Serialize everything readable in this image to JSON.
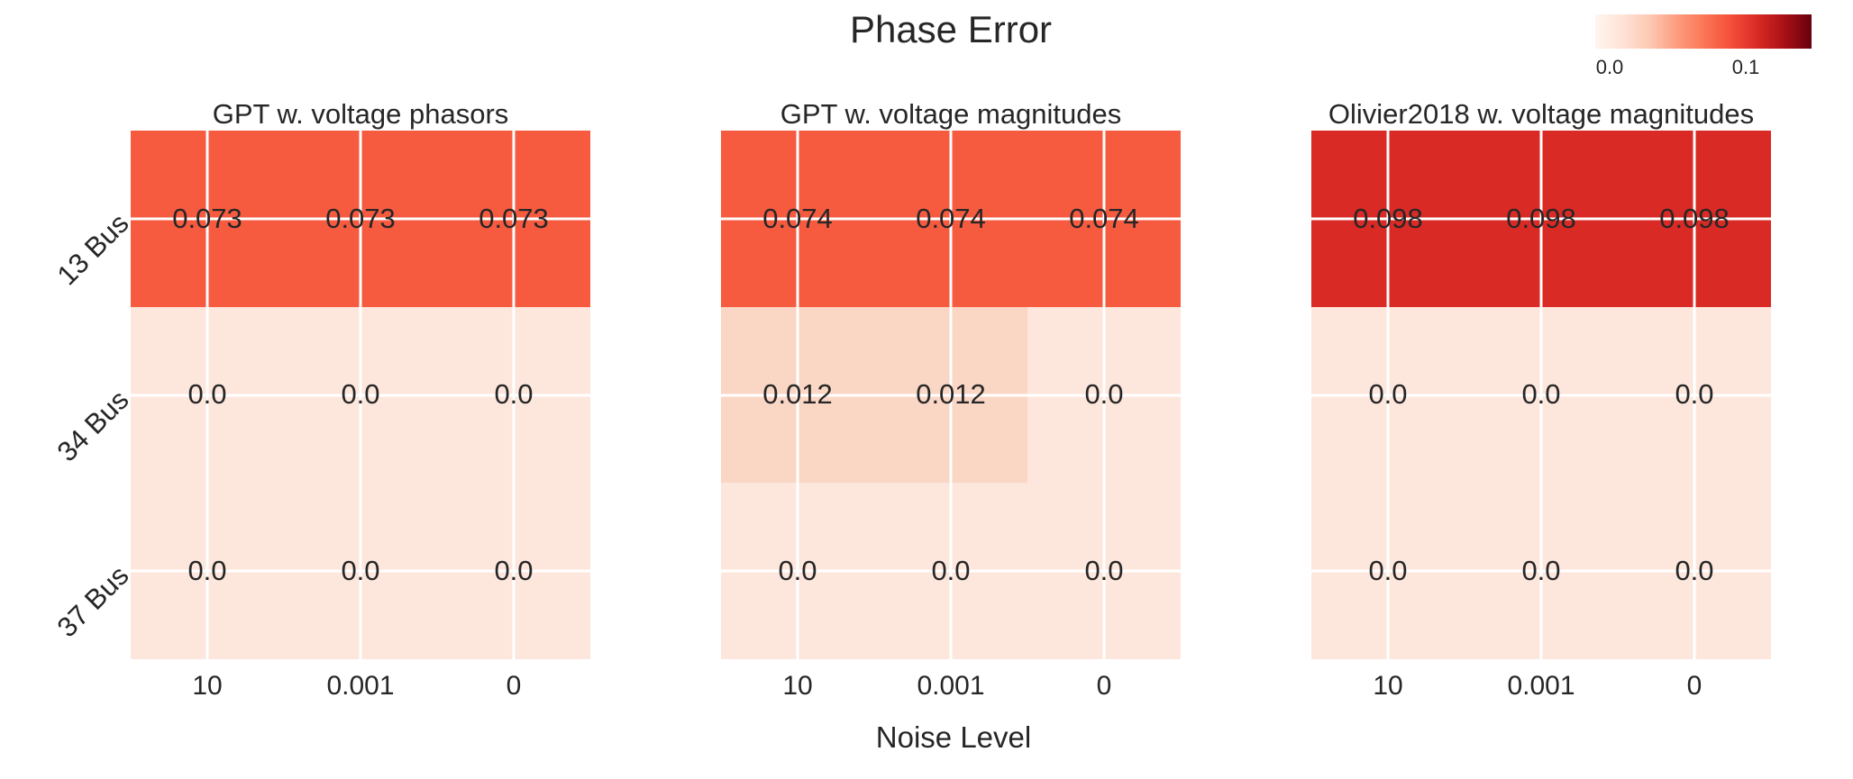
{
  "figure": {
    "title": "Phase Error",
    "x_axis_label": "Noise Level"
  },
  "colorbar": {
    "tick_labels": [
      "0.0",
      "0.1"
    ],
    "cmap_name": "Reds",
    "gradient_stops": [
      "#fff5f0",
      "#fee3d7",
      "#fdc9b3",
      "#fc9e80",
      "#fb7757",
      "#f4503a",
      "#d92a25",
      "#a91016",
      "#67000d"
    ]
  },
  "chart_data": {
    "type": "heatmap",
    "rows": [
      "13 Bus",
      "34 Bus",
      "37 Bus"
    ],
    "columns": [
      "10",
      "0.001",
      "0"
    ],
    "col_axis_label": "Noise Level",
    "colorbar_range_labels": [
      "0.0",
      "0.1"
    ],
    "panels": [
      {
        "title": "GPT w. voltage phasors",
        "values": [
          [
            0.073,
            0.073,
            0.073
          ],
          [
            0.0,
            0.0,
            0.0
          ],
          [
            0.0,
            0.0,
            0.0
          ]
        ],
        "labels": [
          [
            "0.073",
            "0.073",
            "0.073"
          ],
          [
            "0.0",
            "0.0",
            "0.0"
          ],
          [
            "0.0",
            "0.0",
            "0.0"
          ]
        ],
        "colors": [
          [
            "#f65b40",
            "#f65b40",
            "#f65b40"
          ],
          [
            "#fde7dd",
            "#fde7dd",
            "#fde7dd"
          ],
          [
            "#fde7dd",
            "#fde7dd",
            "#fde7dd"
          ]
        ]
      },
      {
        "title": "GPT w. voltage magnitudes",
        "values": [
          [
            0.074,
            0.074,
            0.074
          ],
          [
            0.012,
            0.012,
            0.0
          ],
          [
            0.0,
            0.0,
            0.0
          ]
        ],
        "labels": [
          [
            "0.074",
            "0.074",
            "0.074"
          ],
          [
            "0.012",
            "0.012",
            "0.0"
          ],
          [
            "0.0",
            "0.0",
            "0.0"
          ]
        ],
        "colors": [
          [
            "#f65b40",
            "#f65b40",
            "#f65b40"
          ],
          [
            "#fad6c4",
            "#fad6c4",
            "#fde7dd"
          ],
          [
            "#fde7dd",
            "#fde7dd",
            "#fde7dd"
          ]
        ]
      },
      {
        "title": "Olivier2018 w. voltage magnitudes",
        "values": [
          [
            0.098,
            0.098,
            0.098
          ],
          [
            0.0,
            0.0,
            0.0
          ],
          [
            0.0,
            0.0,
            0.0
          ]
        ],
        "labels": [
          [
            "0.098",
            "0.098",
            "0.098"
          ],
          [
            "0.0",
            "0.0",
            "0.0"
          ],
          [
            "0.0",
            "0.0",
            "0.0"
          ]
        ],
        "colors": [
          [
            "#d92a25",
            "#d92a25",
            "#d92a25"
          ],
          [
            "#fde7dd",
            "#fde7dd",
            "#fde7dd"
          ],
          [
            "#fde7dd",
            "#fde7dd",
            "#fde7dd"
          ]
        ]
      }
    ]
  },
  "style_colors": {
    "text": "#262626",
    "gridline": "#ffffff",
    "background": "#ffffff"
  }
}
